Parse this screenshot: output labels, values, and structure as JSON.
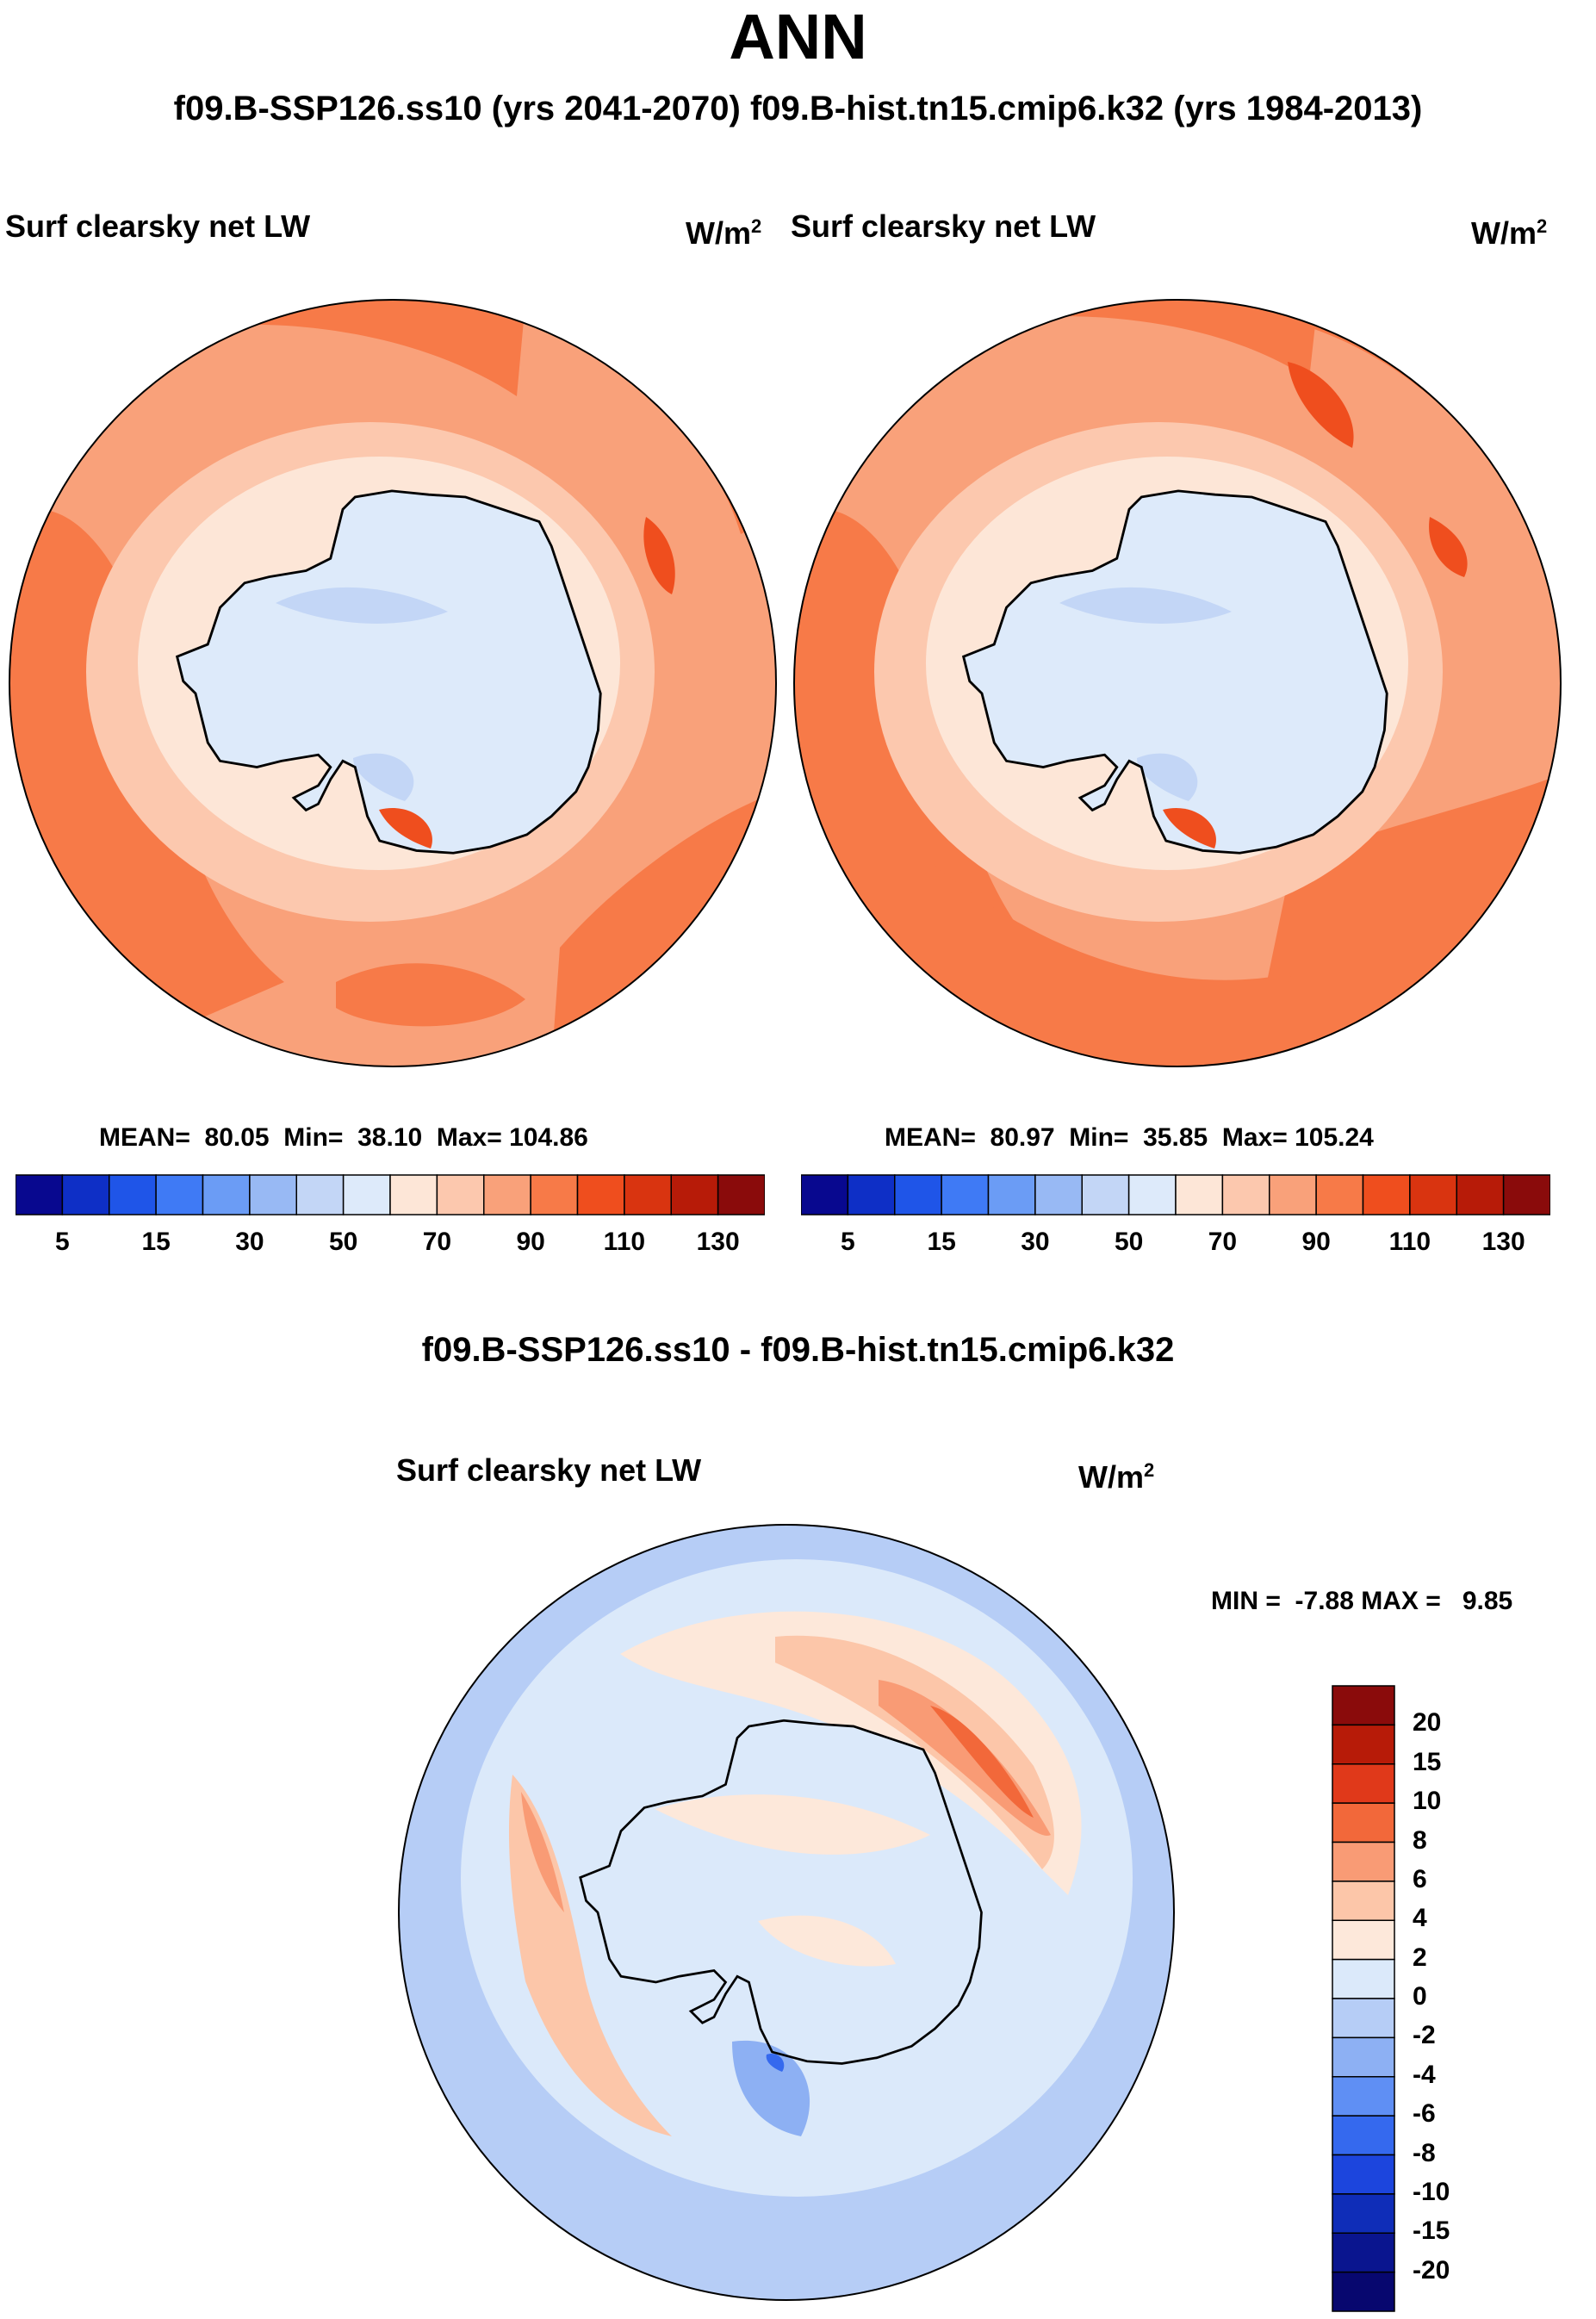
{
  "title": "ANN",
  "subtitle": "f09.B-SSP126.ss10 (yrs 2041-2070)  f09.B-hist.tn15.cmip6.k32 (yrs 1984-2013)",
  "chart_data": [
    {
      "type": "heatmap",
      "projection": "south polar stereographic",
      "case": "f09.B-SSP126.ss10 (yrs 2041-2070)",
      "variable_label": "Surf clearsky net LW",
      "units_base": "W/m",
      "units_exp": "2",
      "stats": {
        "mean_label": "MEAN=",
        "mean": "80.05",
        "min_label": "Min=",
        "min": "38.10",
        "max_label": "Max=",
        "max": "104.86"
      },
      "colorbar": {
        "ticks": [
          "5",
          "15",
          "30",
          "50",
          "70",
          "90",
          "110",
          "130"
        ],
        "colors": [
          "#08088f",
          "#0e2fc6",
          "#1f55e8",
          "#3f7af5",
          "#6b9cf5",
          "#98b9f4",
          "#c3d6f6",
          "#ddeafa",
          "#fde6d7",
          "#fcc8ae",
          "#f9a17a",
          "#f77a48",
          "#ef4e1e",
          "#d93410",
          "#b71b08",
          "#8a0b0b"
        ]
      }
    },
    {
      "type": "heatmap",
      "projection": "south polar stereographic",
      "case": "f09.B-hist.tn15.cmip6.k32 (yrs 1984-2013)",
      "variable_label": "Surf clearsky net LW",
      "units_base": "W/m",
      "units_exp": "2",
      "stats": {
        "mean_label": "MEAN=",
        "mean": "80.97",
        "min_label": "Min=",
        "min": "35.85",
        "max_label": "Max=",
        "max": "105.24"
      },
      "colorbar": {
        "ticks": [
          "5",
          "15",
          "30",
          "50",
          "70",
          "90",
          "110",
          "130"
        ],
        "colors": [
          "#08088f",
          "#0e2fc6",
          "#1f55e8",
          "#3f7af5",
          "#6b9cf5",
          "#98b9f4",
          "#c3d6f6",
          "#ddeafa",
          "#fde6d7",
          "#fcc8ae",
          "#f9a17a",
          "#f77a48",
          "#ef4e1e",
          "#d93410",
          "#b71b08",
          "#8a0b0b"
        ]
      }
    },
    {
      "type": "heatmap",
      "projection": "south polar stereographic",
      "title": "f09.B-SSP126.ss10 - f09.B-hist.tn15.cmip6.k32",
      "variable_label": "Surf clearsky net LW",
      "units_base": "W/m",
      "units_exp": "2",
      "stats": {
        "min_label": "MIN =",
        "min": "-7.88",
        "max_label": "MAX =",
        "max": "9.85"
      },
      "colorbar": {
        "ticks": [
          "20",
          "15",
          "10",
          "8",
          "6",
          "4",
          "2",
          "0",
          "-2",
          "-4",
          "-6",
          "-8",
          "-10",
          "-15",
          "-20"
        ],
        "colors": [
          "#8a0b0b",
          "#b71b08",
          "#e0391a",
          "#f2683a",
          "#f99b75",
          "#fcc6a9",
          "#fde8da",
          "#dbe9fa",
          "#b6cdf6",
          "#8db0f3",
          "#5f8ff4",
          "#3569ee",
          "#1c45dd",
          "#0f2db8",
          "#0a158f",
          "#07076f"
        ]
      }
    }
  ]
}
